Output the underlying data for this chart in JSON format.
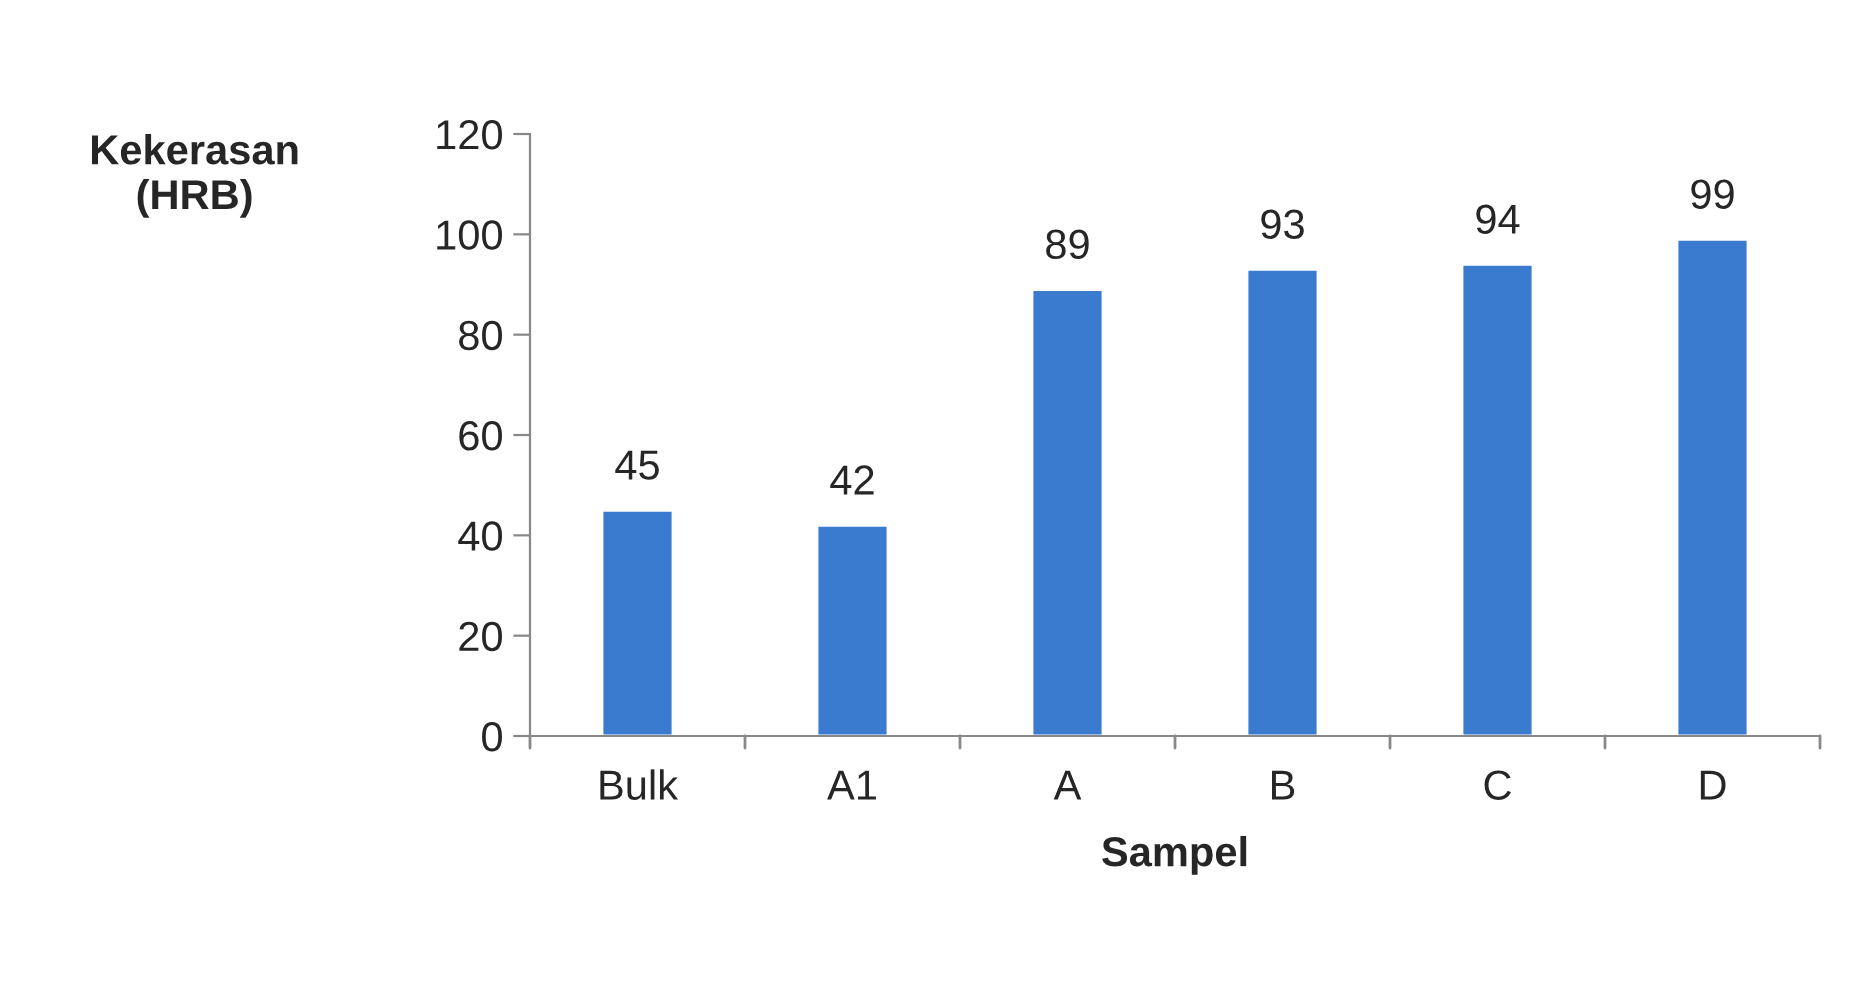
{
  "chart_data": {
    "type": "bar",
    "xlabel": "Sampel",
    "ylabel": "Kekerasan\n(HRB)",
    "categories": [
      "Bulk",
      "A1",
      "A",
      "B",
      "C",
      "D"
    ],
    "values": [
      45,
      42,
      89,
      93,
      94,
      99
    ],
    "color": "#3a7bd0",
    "ylim": [
      0,
      120
    ],
    "yticks": [
      0,
      20,
      40,
      60,
      80,
      100,
      120
    ],
    "data_labels": true,
    "grid": false,
    "legend": false
  }
}
